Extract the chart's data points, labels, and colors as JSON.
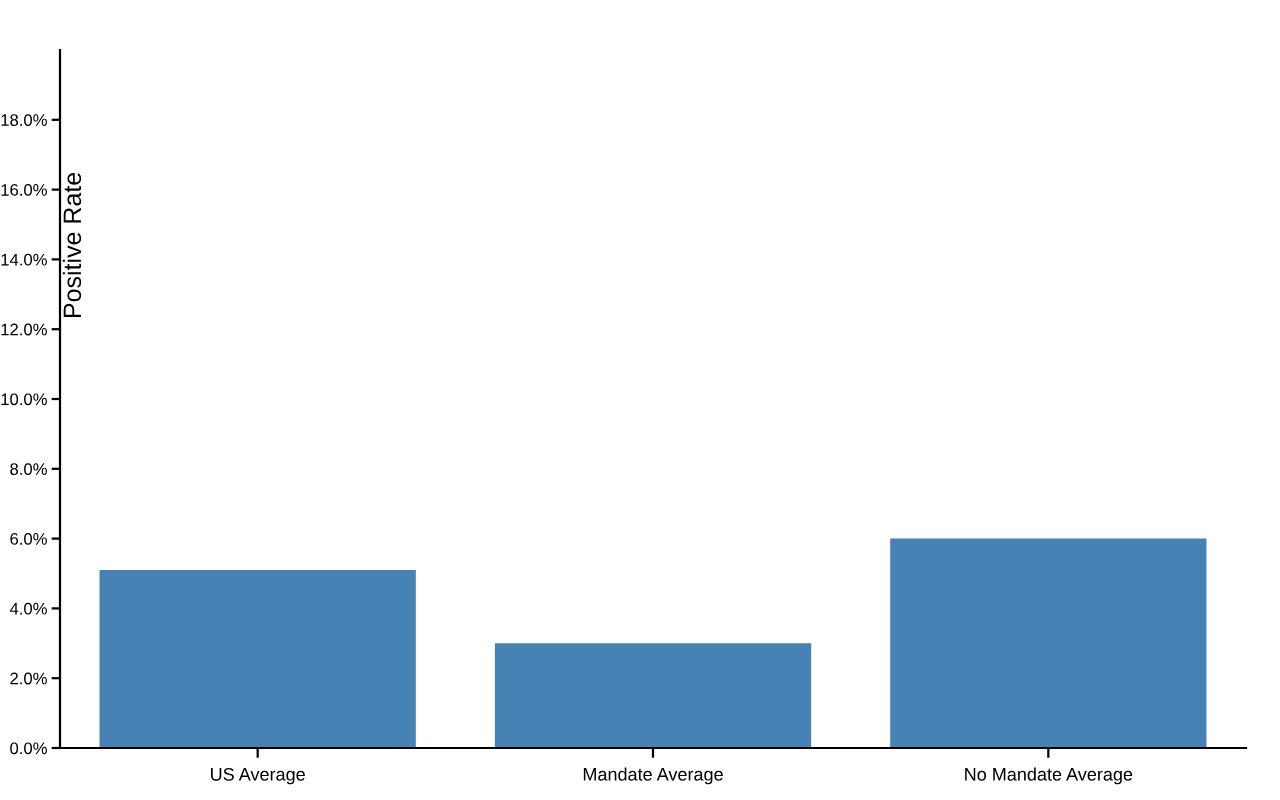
{
  "chart_data": {
    "type": "bar",
    "ylabel": "Positive Rate",
    "categories": [
      "US Average",
      "Mandate Average",
      "No Mandate Average"
    ],
    "values": [
      5.1,
      3.0,
      6.0
    ],
    "color": "#4682b4",
    "ylim": [
      0,
      20
    ],
    "yticks": [
      {
        "value": 0,
        "label": "0.0%"
      },
      {
        "value": 2,
        "label": "2.0%"
      },
      {
        "value": 4,
        "label": "4.0%"
      },
      {
        "value": 6,
        "label": "6.0%"
      },
      {
        "value": 8,
        "label": "8.0%"
      },
      {
        "value": 10,
        "label": "10.0%"
      },
      {
        "value": 12,
        "label": "12.0%"
      },
      {
        "value": 14,
        "label": "14.0%"
      },
      {
        "value": 16,
        "label": "16.0%"
      },
      {
        "value": 18,
        "label": "18.0%"
      }
    ],
    "grid": false,
    "legend": false
  }
}
